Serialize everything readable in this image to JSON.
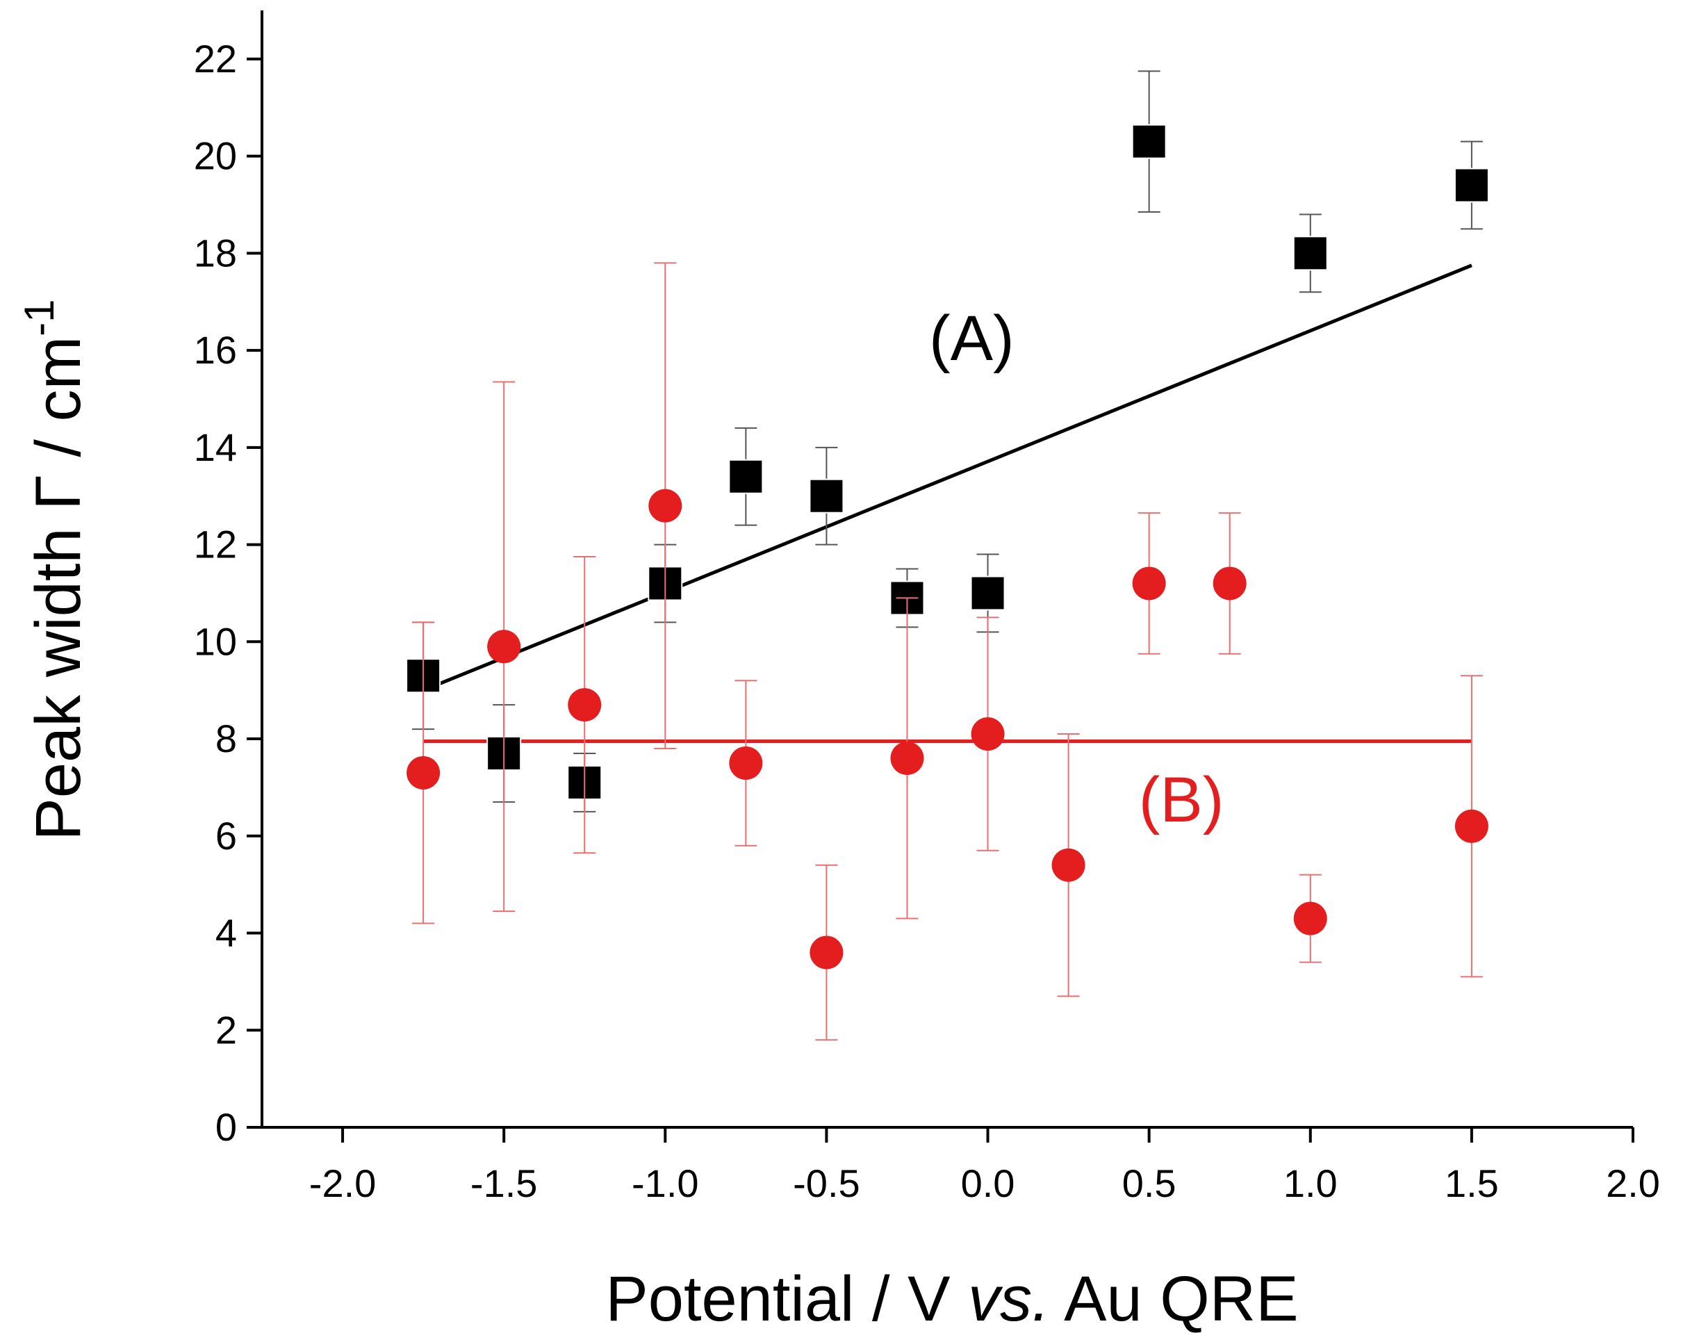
{
  "chart_data": {
    "type": "scatter",
    "x_label_parts": [
      "Potential / V ",
      "vs.",
      " Au QRE"
    ],
    "y_label_parts": [
      "Peak width Γ / cm",
      "-1"
    ],
    "xlim": [
      -2.25,
      2.0
    ],
    "ylim": [
      0,
      23
    ],
    "xticks": [
      {
        "value": -2,
        "label": "-2.0"
      },
      -1.5,
      {
        "value": -1,
        "label": "-1.0"
      },
      -0.5,
      {
        "value": 0,
        "label": "0.0"
      },
      0.5,
      {
        "value": 1,
        "label": "1.0"
      },
      1.5,
      {
        "value": 2,
        "label": "2.0"
      }
    ],
    "yticks": [
      0,
      2,
      4,
      6,
      8,
      10,
      12,
      14,
      16,
      18,
      20,
      22
    ],
    "series": [
      {
        "marker": "square",
        "color": "#000000",
        "error_color": "#555555",
        "x": [
          -1.75,
          -1.5,
          -1.25,
          -1.0,
          -0.75,
          -0.5,
          -0.25,
          0.0,
          0.5,
          1.0,
          1.5
        ],
        "values": [
          9.3,
          7.7,
          7.1,
          11.2,
          13.4,
          13.0,
          10.9,
          11.0,
          20.3,
          18.0,
          19.4
        ],
        "errors": [
          1.1,
          1.0,
          0.6,
          0.8,
          1.0,
          1.0,
          0.6,
          0.8,
          1.45,
          0.8,
          0.9
        ]
      },
      {
        "marker": "circle",
        "color": "#e41e1e",
        "error_color": "#e87070",
        "x": [
          -1.75,
          -1.5,
          -1.25,
          -1.0,
          -0.75,
          -0.5,
          -0.25,
          0.0,
          0.25,
          0.5,
          0.75,
          1.0,
          1.5
        ],
        "values": [
          7.3,
          9.9,
          8.7,
          12.8,
          7.5,
          3.6,
          7.6,
          8.1,
          5.4,
          11.2,
          11.2,
          4.3,
          6.2
        ],
        "errors": [
          3.1,
          5.45,
          3.05,
          5.0,
          1.7,
          1.8,
          3.3,
          2.4,
          2.7,
          1.45,
          1.45,
          0.9,
          3.1
        ]
      }
    ],
    "fits": [
      {
        "label": "(A)",
        "color": "#000000",
        "x": [
          -1.75,
          1.5
        ],
        "values": [
          9.0,
          17.75
        ],
        "label_x": -0.05,
        "label_y": 15.8
      },
      {
        "label": "(B)",
        "color": "#e41e1e",
        "x": [
          -1.75,
          1.5
        ],
        "values": [
          7.95,
          7.95
        ],
        "label_x": 0.6,
        "label_y": 6.3
      }
    ]
  }
}
